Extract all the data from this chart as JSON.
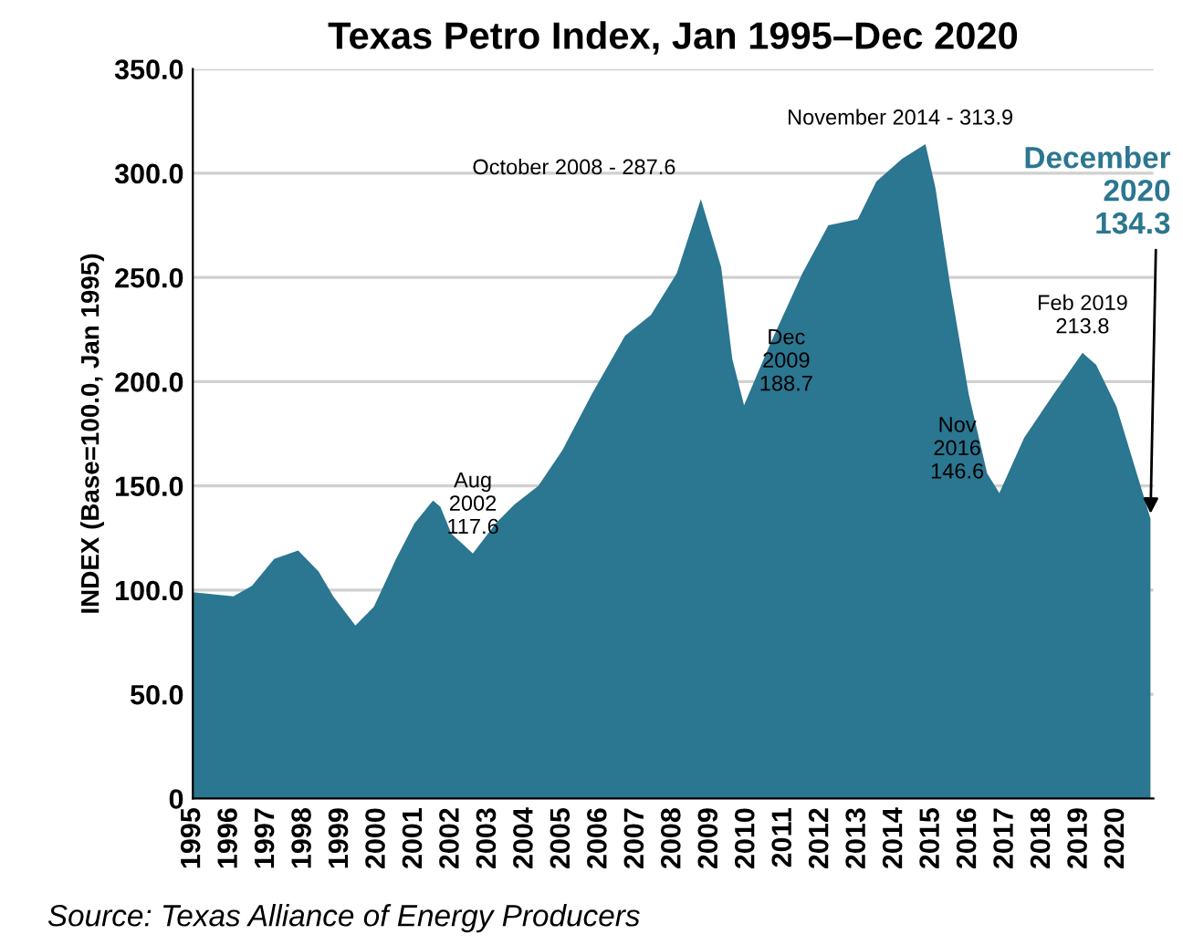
{
  "chart_data": {
    "type": "area",
    "title": "Texas Petro Index, Jan 1995–Dec 2020",
    "ylabel": "INDEX (Base=100.0, Jan 1995)",
    "x": [
      1995.0,
      1996.1,
      1996.6,
      1997.2,
      1997.85,
      1998.4,
      1998.8,
      1999.4,
      1999.9,
      2000.5,
      2001.0,
      2001.5,
      2001.7,
      2002.0,
      2002.58,
      2003.2,
      2003.7,
      2004.35,
      2005.0,
      2005.8,
      2006.7,
      2007.4,
      2008.1,
      2008.75,
      2009.3,
      2009.6,
      2009.92,
      2010.6,
      2011.5,
      2012.2,
      2013.0,
      2013.5,
      2014.2,
      2014.83,
      2015.1,
      2015.5,
      2016.0,
      2016.5,
      2016.83,
      2017.5,
      2018.3,
      2019.08,
      2019.45,
      2020.0,
      2020.6,
      2020.92
    ],
    "series": [
      {
        "color": "#2b7690",
        "values": [
          99,
          97,
          102,
          115,
          119,
          109,
          97,
          83,
          92,
          115,
          132,
          143,
          140,
          127,
          117.6,
          132,
          141,
          150,
          167,
          194,
          222,
          232,
          252,
          287.6,
          255,
          211,
          188.7,
          217,
          252,
          275,
          278,
          296,
          307,
          313.9,
          293,
          246,
          194,
          156,
          146.6,
          173,
          194,
          213.8,
          208,
          188,
          153,
          134.3
        ]
      }
    ],
    "xlim": [
      1995,
      2021
    ],
    "xticks": [
      1995,
      1996,
      1997,
      1998,
      1999,
      2000,
      2001,
      2002,
      2003,
      2004,
      2005,
      2006,
      2007,
      2008,
      2009,
      2010,
      2011,
      2012,
      2013,
      2014,
      2015,
      2016,
      2017,
      2018,
      2019,
      2020
    ],
    "ylim": [
      0,
      350
    ],
    "yticks": [
      0,
      {
        "value": 50,
        "label": "50.0"
      },
      {
        "value": 100,
        "label": "100.0"
      },
      {
        "value": 150,
        "label": "150.0"
      },
      {
        "value": 200,
        "label": "200.0"
      },
      {
        "value": 250,
        "label": "250.0"
      },
      {
        "value": 300,
        "label": "300.0"
      },
      {
        "value": 350,
        "label": "350.0"
      }
    ],
    "grid": "y",
    "annotations": [
      {
        "text": "Aug\n2002\n117.6",
        "x": 2002.58,
        "y": 117.6
      },
      {
        "text": "October 2008 - 287.6",
        "x": 2008.75,
        "y": 287.6
      },
      {
        "text": "Dec\n2009\n188.7",
        "x": 2009.92,
        "y": 188.7
      },
      {
        "text": "November 2014 - 313.9",
        "x": 2014.83,
        "y": 313.9
      },
      {
        "text": "Nov\n2016\n146.6",
        "x": 2016.83,
        "y": 146.6
      },
      {
        "text": "Feb 2019\n213.8",
        "x": 2019.08,
        "y": 213.8
      },
      {
        "text": "December\n2020\n134.3",
        "x": 2020.92,
        "y": 134.3
      },
      "Source: Texas Alliance of Energy Producers"
    ]
  }
}
